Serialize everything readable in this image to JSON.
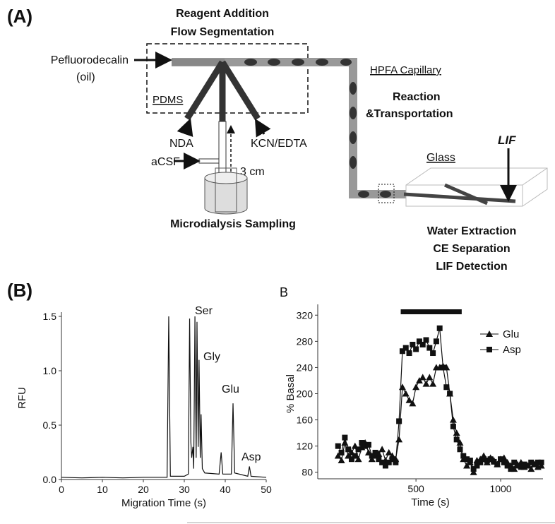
{
  "figure": {
    "panel_a": {
      "label": "(A)",
      "title_1": "Reagent Addition",
      "title_2": "Flow Segmentation",
      "oil_1": "Pefluorodecalin",
      "oil_2": "(oil)",
      "pdms": "PDMS",
      "nda": "NDA",
      "kcn": "KCN/EDTA",
      "acsf": "aCSF",
      "length": "3 cm",
      "sampling": "Microdialysis Sampling",
      "capillary": "HPFA Capillary",
      "reaction_1": "Reaction",
      "reaction_2": "&Transportation",
      "glass": "Glass",
      "lif": "LIF",
      "step_1": "Water Extraction",
      "step_2": "CE Separation",
      "step_3": "LIF Detection"
    },
    "panel_b_label": "(B)"
  },
  "chart_data": [
    {
      "type": "line",
      "xlabel": "Migration Time (s)",
      "ylabel": "RFU",
      "color": "#111111",
      "x": [
        0,
        5,
        10,
        15,
        20,
        25,
        25.8,
        26.2,
        26.6,
        30,
        31,
        31.3,
        31.6,
        31.8,
        32.1,
        32.3,
        32.6,
        32.9,
        33.1,
        33.4,
        33.6,
        33.9,
        34.1,
        34.4,
        35,
        38.5,
        39,
        39.4,
        41.5,
        41.9,
        42.3,
        45.5,
        45.9,
        46.3,
        50
      ],
      "values": [
        0.02,
        0.015,
        0.02,
        0.015,
        0.02,
        0.02,
        0.02,
        1.5,
        0.03,
        0.03,
        0.05,
        1.48,
        0.35,
        0.2,
        0.3,
        0.1,
        1.5,
        0.2,
        1.45,
        0.3,
        1.1,
        0.2,
        0.6,
        0.1,
        0.06,
        0.05,
        0.25,
        0.05,
        0.05,
        0.7,
        0.06,
        0.03,
        0.12,
        0.03,
        0.02
      ],
      "annotations": [
        "Ser",
        "Gly",
        "Glu",
        "Asp"
      ],
      "xlim": [
        0,
        50
      ],
      "xticks": [
        0,
        10,
        20,
        30,
        40,
        50
      ],
      "ylim": [
        0,
        1.5
      ],
      "yticks": [
        {
          "value": 0,
          "label": "0.0"
        },
        {
          "value": 0.5,
          "label": "0.5"
        },
        {
          "value": 1,
          "label": "1.0"
        },
        {
          "value": 1.5,
          "label": "1.5"
        }
      ]
    },
    {
      "type": "line",
      "title": "B",
      "xlabel": "Time (s)",
      "ylabel": "% Basal",
      "legend": "upper right",
      "stimulus": [
        410,
        770
      ],
      "x": [
        40,
        60,
        80,
        100,
        120,
        140,
        160,
        180,
        200,
        220,
        240,
        260,
        280,
        300,
        320,
        340,
        360,
        380,
        400,
        420,
        440,
        460,
        480,
        500,
        520,
        540,
        560,
        580,
        600,
        620,
        640,
        660,
        680,
        700,
        720,
        740,
        760,
        780,
        800,
        820,
        840,
        860,
        880,
        900,
        920,
        940,
        960,
        980,
        1000,
        1020,
        1040,
        1060,
        1080,
        1100,
        1120,
        1140,
        1160,
        1180,
        1200,
        1220,
        1240
      ],
      "series": [
        {
          "name": "Glu",
          "color": "#111111",
          "marker": "triangle",
          "values": [
            105,
            98,
            125,
            105,
            110,
            120,
            100,
            118,
            125,
            110,
            100,
            105,
            108,
            115,
            98,
            110,
            105,
            100,
            130,
            210,
            200,
            190,
            185,
            210,
            220,
            225,
            215,
            225,
            215,
            240,
            240,
            242,
            240,
            200,
            160,
            140,
            125,
            100,
            90,
            95,
            80,
            98,
            100,
            105,
            95,
            102,
            98,
            92,
            100,
            102,
            95,
            90,
            85,
            92,
            95,
            88,
            90,
            85,
            92,
            88,
            90
          ]
        },
        {
          "name": "Asp",
          "color": "#111111",
          "marker": "square",
          "values": [
            120,
            110,
            133,
            115,
            100,
            105,
            115,
            125,
            120,
            122,
            105,
            110,
            100,
            95,
            90,
            95,
            100,
            95,
            158,
            265,
            270,
            262,
            275,
            268,
            280,
            275,
            282,
            270,
            262,
            280,
            300,
            240,
            210,
            200,
            150,
            130,
            115,
            105,
            100,
            98,
            85,
            90,
            95,
            100,
            98,
            100,
            96,
            92,
            100,
            95,
            90,
            85,
            95,
            90,
            88,
            92,
            90,
            95,
            92,
            95,
            95
          ]
        }
      ],
      "xlim": [
        -80,
        1250
      ],
      "xticks": [
        500,
        1000
      ],
      "ylim": [
        70,
        330
      ],
      "yticks": [
        80,
        120,
        160,
        200,
        240,
        280,
        320
      ]
    }
  ]
}
